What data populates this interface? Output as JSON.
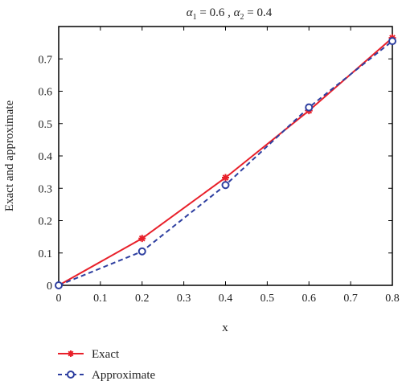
{
  "chart_data": {
    "type": "line",
    "title": {
      "alpha": "α",
      "sub1": "1",
      "mid": " = 0.6 , ",
      "sub2": "2",
      "end": " = 0.4"
    },
    "xlabel": "x",
    "ylabel": "Exact and approximate",
    "xlim": [
      0,
      0.8
    ],
    "ylim": [
      0,
      0.8
    ],
    "xticks": [
      "0",
      "0.1",
      "0.2",
      "0.3",
      "0.4",
      "0.5",
      "0.6",
      "0.7",
      "0.8"
    ],
    "yticks": [
      "0",
      "0.1",
      "0.2",
      "0.3",
      "0.4",
      "0.5",
      "0.6",
      "0.7"
    ],
    "grid": false,
    "legend_position": "bottom-left, outside plot",
    "x": [
      0,
      0.2,
      0.4,
      0.6,
      0.8
    ],
    "series": [
      {
        "name": "Exact",
        "values": [
          0,
          0.145,
          0.333,
          0.54,
          0.765
        ],
        "color": "#e8202a",
        "line_style": "solid",
        "marker": "star"
      },
      {
        "name": "Approximate",
        "values": [
          0,
          0.105,
          0.31,
          0.55,
          0.755
        ],
        "color": "#2e3fa0",
        "line_style": "dashed",
        "marker": "circle"
      }
    ]
  }
}
